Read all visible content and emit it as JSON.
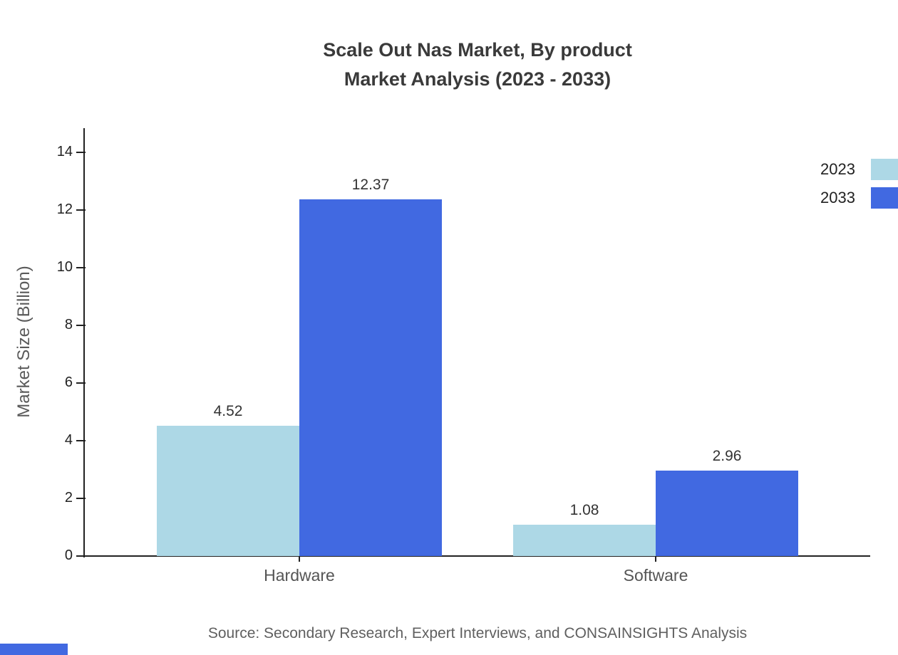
{
  "title": {
    "line1": "Scale Out Nas Market, By product",
    "line2": "Market Analysis (2023 - 2033)"
  },
  "source": "Source: Secondary Research, Expert Interviews, and CONSAINSIGHTS Analysis",
  "colors": {
    "series_2023": "#ADD8E6",
    "series_2033": "#4169E1",
    "axis": "#222222",
    "brand": "#4169E1"
  },
  "chart_data": {
    "type": "bar",
    "title": "Scale Out Nas Market, By product Market Analysis (2023 - 2033)",
    "categories": [
      "Hardware",
      "Software"
    ],
    "series": [
      {
        "name": "2023",
        "color": "#ADD8E6",
        "values": [
          4.52,
          1.08
        ]
      },
      {
        "name": "2033",
        "color": "#4169E1",
        "values": [
          12.37,
          2.96
        ]
      }
    ],
    "xlabel": "",
    "ylabel": "Market Size (Billion)",
    "ylim": [
      0,
      14.8
    ],
    "yticks": [
      0,
      2,
      4,
      6,
      8,
      10,
      12,
      14
    ],
    "grid": false,
    "legend_position": "top-right",
    "value_labels": [
      "4.52",
      "12.37",
      "1.08",
      "2.96"
    ]
  }
}
